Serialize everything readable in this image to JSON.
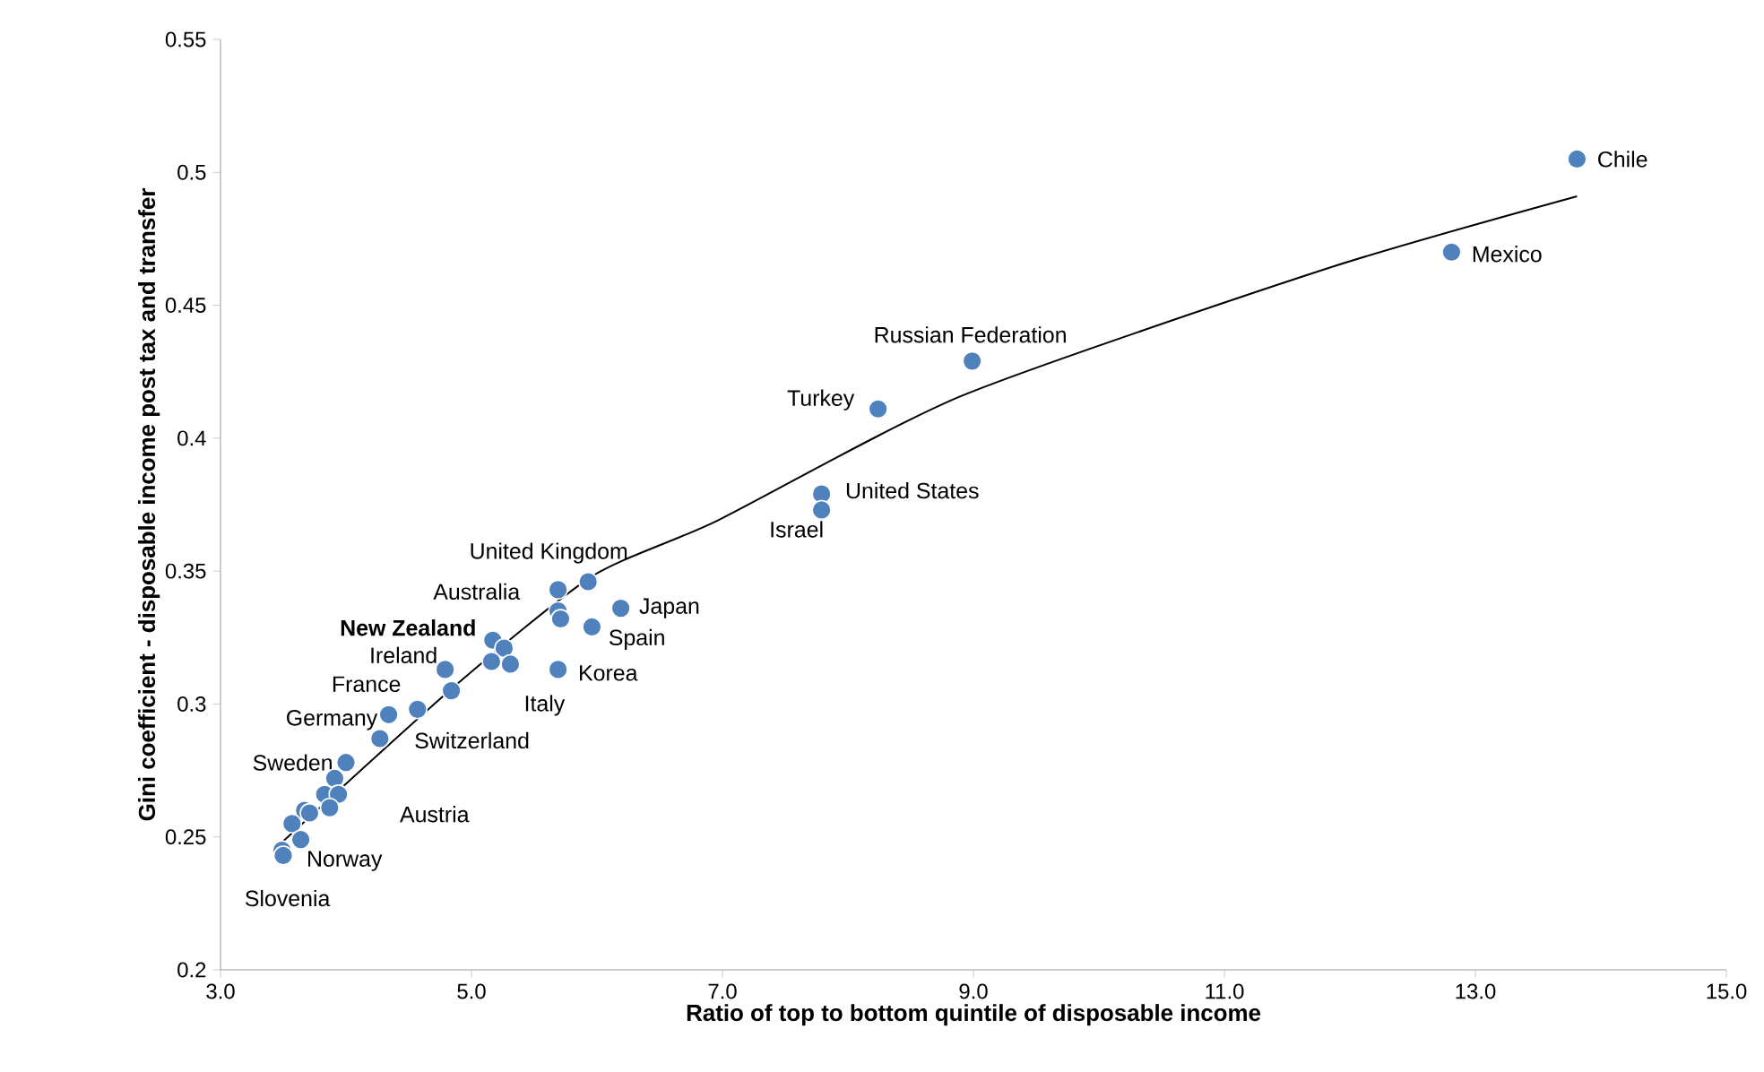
{
  "chart_data": {
    "type": "scatter",
    "xlabel": "Ratio of top to bottom quintile of disposable income",
    "ylabel": "Gini coefficient - disposable income post tax and transfer",
    "marker": "circle",
    "xlim": [
      3,
      15
    ],
    "xticks": [
      {
        "value": 3,
        "label": "3.0"
      },
      {
        "value": 5,
        "label": "5.0"
      },
      {
        "value": 7,
        "label": "7.0"
      },
      {
        "value": 9,
        "label": "9.0"
      },
      {
        "value": 11,
        "label": "11.0"
      },
      {
        "value": 13,
        "label": "13.0"
      },
      {
        "value": 15,
        "label": "15.0"
      }
    ],
    "ylim": [
      0.2,
      0.55
    ],
    "yticks": [
      0.2,
      0.25,
      0.3,
      0.35,
      0.4,
      0.45,
      0.5,
      0.55
    ],
    "series": [
      {
        "color": "#4f81bd",
        "x": [
          13.81,
          12.81,
          8.99,
          8.24,
          7.79,
          7.79,
          5.93,
          5.69,
          5.69,
          5.71,
          6.19,
          5.96,
          5.69,
          5.17,
          5.26,
          5.16,
          5.31,
          4.79,
          4.84,
          4.57,
          4.34,
          4.27,
          4.0,
          3.91,
          3.83,
          3.94,
          3.87,
          3.67,
          3.71,
          3.57,
          3.64,
          3.49,
          3.5
        ],
        "values": [
          0.505,
          0.47,
          0.429,
          0.411,
          0.379,
          0.373,
          0.346,
          0.343,
          0.335,
          0.332,
          0.336,
          0.329,
          0.313,
          0.324,
          0.321,
          0.316,
          0.315,
          0.313,
          0.305,
          0.298,
          0.296,
          0.287,
          0.278,
          0.272,
          0.266,
          0.266,
          0.261,
          0.26,
          0.259,
          0.255,
          0.249,
          0.245,
          0.243
        ]
      },
      {
        "type": "line",
        "color": "#000000",
        "marker": "none",
        "x": [
          3.49,
          4.86,
          5.96,
          6.96,
          8.91,
          11.83,
          13.81
        ],
        "values": [
          0.248,
          0.3065,
          0.348,
          0.369,
          0.416,
          0.464,
          0.491
        ]
      }
    ],
    "annotations": [
      {
        "text": "Chile",
        "x": 13.81,
        "y": 0.505
      },
      {
        "text": "Mexico",
        "x": 12.81,
        "y": 0.47
      },
      {
        "text": "Russian Federation",
        "x": 8.99,
        "y": 0.429
      },
      {
        "text": "Turkey",
        "x": 8.24,
        "y": 0.411
      },
      {
        "text": "United States",
        "x": 7.79,
        "y": 0.379
      },
      {
        "text": "Israel",
        "x": 7.79,
        "y": 0.373
      },
      {
        "text": "United Kingdom",
        "x": 5.93,
        "y": 0.346
      },
      {
        "text": "Australia",
        "x": 5.69,
        "y": 0.343
      },
      {
        "text": "Japan",
        "x": 6.19,
        "y": 0.336
      },
      {
        "text": "Spain",
        "x": 5.96,
        "y": 0.329
      },
      {
        "text": "Korea",
        "x": 5.69,
        "y": 0.313
      },
      {
        "text": "New Zealand",
        "x": 5.17,
        "y": 0.324
      },
      {
        "text": "Ireland",
        "x": 4.79,
        "y": 0.313
      },
      {
        "text": "France",
        "x": 4.57,
        "y": 0.298
      },
      {
        "text": "Germany",
        "x": 4.34,
        "y": 0.296
      },
      {
        "text": "Italy",
        "x": 5.31,
        "y": 0.315
      },
      {
        "text": "Switzerland",
        "x": 4.27,
        "y": 0.287
      },
      {
        "text": "Sweden",
        "x": 4.0,
        "y": 0.278
      },
      {
        "text": "Austria",
        "x": 3.94,
        "y": 0.266
      },
      {
        "text": "Norway",
        "x": 3.64,
        "y": 0.249
      },
      {
        "text": "Slovenia",
        "x": 3.49,
        "y": 0.245
      }
    ]
  }
}
